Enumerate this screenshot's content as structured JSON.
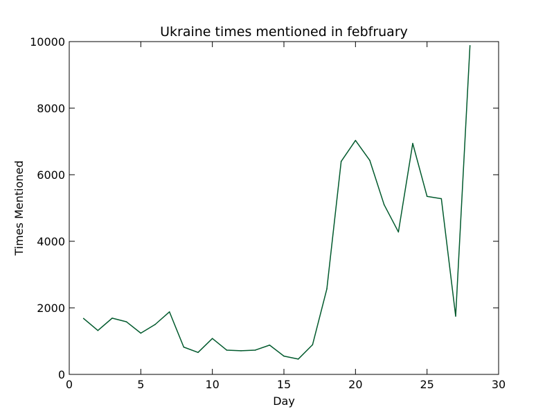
{
  "chart_data": {
    "type": "line",
    "title": "Ukraine times mentioned in febfruary",
    "xlabel": "Day",
    "ylabel": "Times Mentioned",
    "xlim": [
      0,
      30
    ],
    "ylim": [
      0,
      10000
    ],
    "xticks": [
      0,
      5,
      10,
      15,
      20,
      25,
      30
    ],
    "yticks": [
      0,
      2000,
      4000,
      6000,
      8000,
      10000
    ],
    "grid": false,
    "series": [
      {
        "color": "#00592c",
        "x": [
          1,
          2,
          3,
          4,
          5,
          6,
          7,
          8,
          9,
          10,
          11,
          12,
          13,
          14,
          15,
          16,
          17,
          18,
          19,
          20,
          21,
          22,
          23,
          24,
          25,
          26,
          27,
          28
        ],
        "y": [
          1680,
          1320,
          1690,
          1580,
          1240,
          1500,
          1880,
          820,
          660,
          1080,
          730,
          710,
          730,
          880,
          550,
          460,
          890,
          2570,
          6400,
          7030,
          6430,
          5100,
          4280,
          6940,
          5350,
          5280,
          1750,
          9880
        ]
      }
    ]
  }
}
